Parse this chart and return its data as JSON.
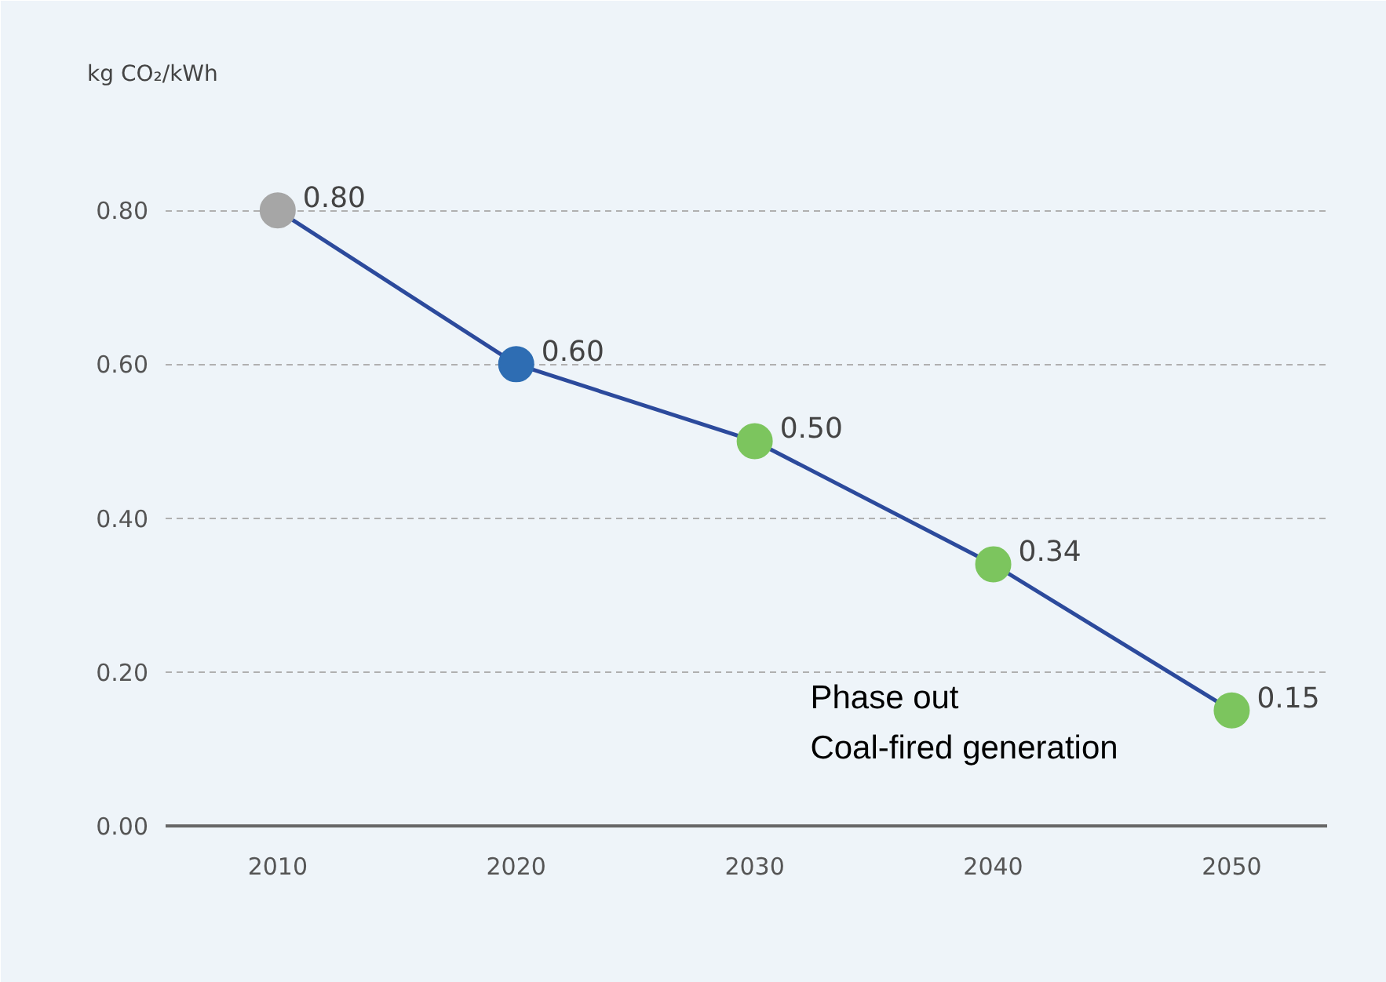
{
  "chart_data": {
    "type": "line",
    "ylabel": "kg CO₂/kWh",
    "x": [
      2010,
      2020,
      2030,
      2040,
      2050
    ],
    "xlim": [
      2005.3,
      2054
    ],
    "xticks": [
      2010,
      2020,
      2030,
      2040,
      2050
    ],
    "ylim": [
      0,
      0.95
    ],
    "yticks": [
      {
        "value": 0,
        "label": "0.00"
      },
      {
        "value": 0.2,
        "label": "0.20"
      },
      {
        "value": 0.4,
        "label": "0.40"
      },
      {
        "value": 0.6,
        "label": "0.60"
      },
      {
        "value": 0.8,
        "label": "0.80"
      }
    ],
    "grid": "y",
    "marker": "circle",
    "line_style": "solid",
    "series": [
      {
        "color": "#2c4a9c",
        "colors": [
          "#a6a6a6",
          "#2e6db3",
          "#7cc55e",
          "#7cc55e",
          "#7cc55e"
        ],
        "values": [
          0.8,
          0.6,
          0.5,
          0.34,
          0.15
        ],
        "value_labels": [
          "0.80",
          "0.60",
          "0.50",
          "0.34",
          "0.15"
        ]
      }
    ],
    "annotations": [
      "Phase out\nCoal-fired generation"
    ]
  }
}
